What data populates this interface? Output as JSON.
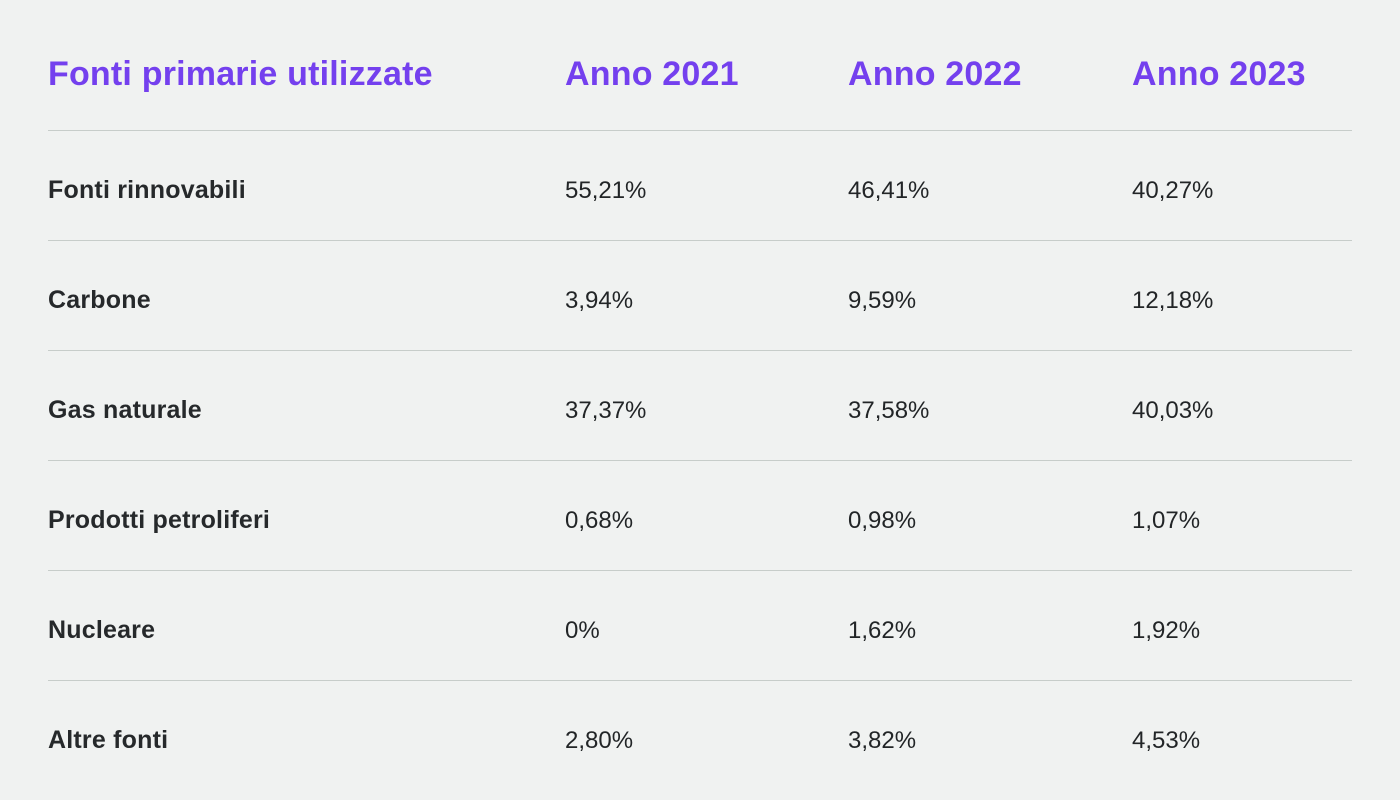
{
  "page": {
    "background_color": "#f0f2f1",
    "accent_color": "#7440ee",
    "divider_color": "#c7cdca",
    "label_color": "#26292b",
    "value_color": "#222527"
  },
  "table": {
    "header": {
      "col0": "Fonti primarie utilizzate",
      "col1": "Anno 2021",
      "col2": "Anno 2022",
      "col3": "Anno 2023"
    },
    "rows": [
      {
        "label": "Fonti rinnovabili",
        "y2021": "55,21%",
        "y2022": "46,41%",
        "y2023": "40,27%"
      },
      {
        "label": "Carbone",
        "y2021": "3,94%",
        "y2022": "9,59%",
        "y2023": "12,18%"
      },
      {
        "label": "Gas naturale",
        "y2021": "37,37%",
        "y2022": "37,58%",
        "y2023": "40,03%"
      },
      {
        "label": "Prodotti petroliferi",
        "y2021": "0,68%",
        "y2022": "0,98%",
        "y2023": "1,07%"
      },
      {
        "label": "Nucleare",
        "y2021": "0%",
        "y2022": "1,62%",
        "y2023": "1,92%"
      },
      {
        "label": "Altre fonti",
        "y2021": "2,80%",
        "y2022": "3,82%",
        "y2023": "4,53%"
      }
    ]
  },
  "chart_data": {
    "type": "table",
    "title": "Fonti primarie utilizzate",
    "columns": [
      "Fonti primarie utilizzate",
      "Anno 2021",
      "Anno 2022",
      "Anno 2023"
    ],
    "categories": [
      "Fonti rinnovabili",
      "Carbone",
      "Gas naturale",
      "Prodotti petroliferi",
      "Nucleare",
      "Altre fonti"
    ],
    "series": [
      {
        "name": "Anno 2021",
        "values": [
          55.21,
          3.94,
          37.37,
          0.68,
          0,
          2.8
        ]
      },
      {
        "name": "Anno 2022",
        "values": [
          46.41,
          9.59,
          37.58,
          0.98,
          1.62,
          3.82
        ]
      },
      {
        "name": "Anno 2023",
        "values": [
          40.27,
          12.18,
          40.03,
          1.07,
          1.92,
          4.53
        ]
      }
    ],
    "unit": "%",
    "layout": {
      "grid": "horizontal-dividers-only",
      "value_alignment": "left"
    }
  }
}
